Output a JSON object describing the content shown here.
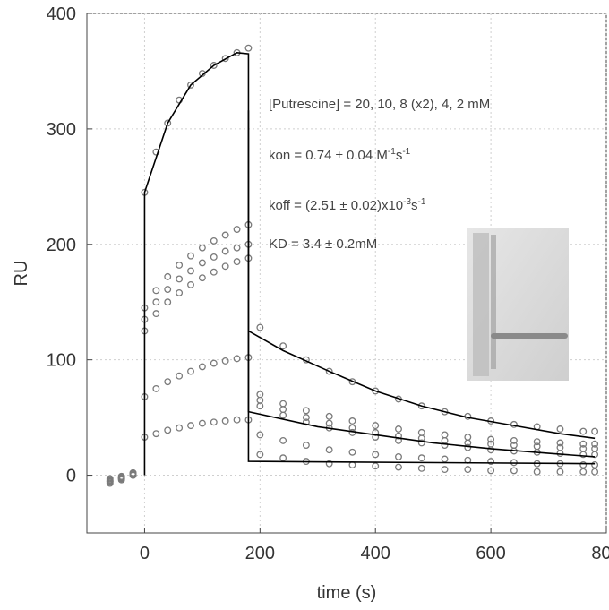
{
  "chart_data": {
    "type": "scatter",
    "xlabel": "time (s)",
    "ylabel": "RU",
    "xlim": [
      -100,
      800
    ],
    "ylim": [
      -50,
      400
    ],
    "xticks": [
      0,
      200,
      400,
      600,
      800
    ],
    "yticks": [
      0,
      100,
      200,
      300,
      400
    ],
    "grid": true,
    "annotations": [
      [
        "[Putrescine] = 20, 10, 8 (x2), 4, 2 mM"
      ],
      [
        "kon = 0.74 ± 0.04 M",
        "-1",
        "s",
        "-1"
      ],
      [
        "koff = (2.51 ± 0.02)x10",
        "-3",
        "s",
        "-1"
      ],
      [
        "KD = 3.4 ± 0.2mM"
      ]
    ],
    "x": [
      -60,
      -40,
      -20,
      0,
      20,
      40,
      60,
      80,
      100,
      120,
      140,
      160,
      180,
      200,
      240,
      280,
      320,
      360,
      400,
      440,
      480,
      520,
      560,
      600,
      640,
      680,
      720,
      760,
      780
    ],
    "series": [
      {
        "color": "#7a7a7a",
        "values": [
          -5,
          -3,
          0,
          245,
          280,
          305,
          325,
          338,
          348,
          355,
          361,
          366,
          370,
          128,
          112,
          100,
          90,
          81,
          73,
          66,
          60,
          55,
          51,
          47,
          44,
          42,
          40,
          38,
          38
        ]
      },
      {
        "color": "#7a7a7a",
        "values": [
          -4,
          -2,
          1,
          145,
          160,
          172,
          182,
          190,
          197,
          203,
          208,
          213,
          217,
          70,
          62,
          56,
          51,
          47,
          43,
          40,
          37,
          35,
          33,
          31,
          30,
          29,
          28,
          27,
          27
        ]
      },
      {
        "color": "#7a7a7a",
        "values": [
          -6,
          -3,
          2,
          135,
          150,
          161,
          170,
          177,
          184,
          189,
          194,
          197,
          200,
          65,
          57,
          50,
          45,
          41,
          37,
          34,
          32,
          30,
          28,
          27,
          26,
          25,
          24,
          23,
          23
        ]
      },
      {
        "color": "#7a7a7a",
        "values": [
          -5,
          -2,
          0,
          125,
          140,
          150,
          158,
          165,
          171,
          176,
          181,
          185,
          188,
          60,
          52,
          46,
          41,
          37,
          33,
          30,
          28,
          26,
          24,
          22,
          21,
          20,
          19,
          18,
          18
        ]
      },
      {
        "color": "#7a7a7a",
        "values": [
          -7,
          -4,
          1,
          68,
          75,
          81,
          86,
          90,
          94,
          97,
          99,
          101,
          102,
          35,
          30,
          26,
          22,
          20,
          18,
          16,
          15,
          14,
          13,
          12,
          11,
          10,
          10,
          9,
          9
        ]
      },
      {
        "color": "#7a7a7a",
        "values": [
          -3,
          -1,
          2,
          33,
          36,
          39,
          41,
          43,
          45,
          46,
          47,
          48,
          48,
          18,
          15,
          12,
          10,
          9,
          8,
          7,
          6,
          5,
          5,
          4,
          4,
          3,
          3,
          3,
          3
        ]
      }
    ],
    "fits": [
      {
        "color": "#000000",
        "x": [
          0,
          0,
          40,
          80,
          120,
          160,
          180,
          180,
          240,
          320,
          400,
          480,
          560,
          640,
          720,
          780
        ],
        "values": [
          0,
          245,
          305,
          338,
          355,
          366,
          365,
          125,
          108,
          90,
          73,
          60,
          50,
          43,
          36,
          32
        ]
      },
      {
        "color": "#000000",
        "x": [
          180,
          180,
          300,
          400,
          500,
          600,
          700,
          780
        ],
        "values": [
          316,
          55,
          42,
          35,
          28,
          23,
          19,
          16
        ]
      },
      {
        "color": "#000000",
        "x": [
          180,
          180,
          780
        ],
        "values": [
          125,
          12,
          10
        ]
      }
    ]
  }
}
